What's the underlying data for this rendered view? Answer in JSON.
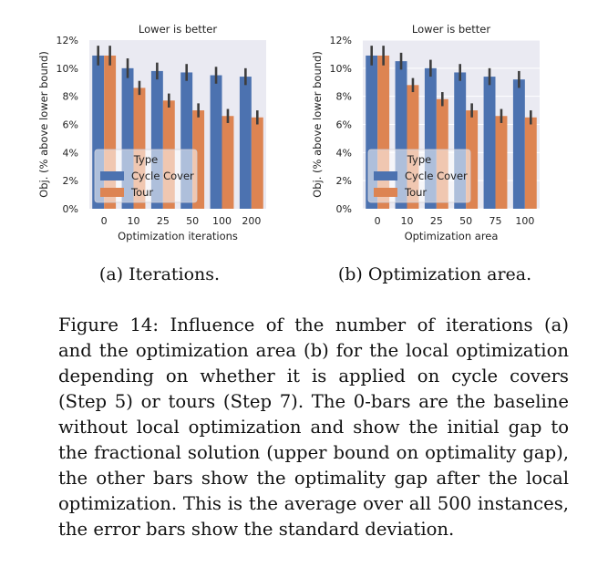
{
  "chart_data": [
    {
      "type": "bar",
      "title": "Lower is better",
      "xlabel": "Optimization iterations",
      "ylabel": "Obj. (% above lower bound)",
      "categories": [
        "0",
        "10",
        "25",
        "50",
        "100",
        "200"
      ],
      "ylim": [
        0,
        12
      ],
      "yticks": [
        "0%",
        "2%",
        "4%",
        "6%",
        "8%",
        "10%",
        "12%"
      ],
      "legend": {
        "title": "Type",
        "placement": "lower-left"
      },
      "grid": false,
      "series": [
        {
          "name": "Cycle Cover",
          "color": "#4c72b0",
          "values": [
            10.9,
            10.0,
            9.8,
            9.7,
            9.5,
            9.4
          ],
          "err": [
            0.7,
            0.7,
            0.6,
            0.6,
            0.6,
            0.6
          ]
        },
        {
          "name": "Tour",
          "color": "#dd8452",
          "values": [
            10.9,
            8.6,
            7.7,
            7.0,
            6.6,
            6.5
          ],
          "err": [
            0.7,
            0.5,
            0.5,
            0.5,
            0.5,
            0.5
          ]
        }
      ]
    },
    {
      "type": "bar",
      "title": "Lower is better",
      "xlabel": "Optimization area",
      "ylabel": "Obj. (% above lower bound)",
      "categories": [
        "0",
        "10",
        "25",
        "50",
        "75",
        "100"
      ],
      "ylim": [
        0,
        12
      ],
      "yticks": [
        "0%",
        "2%",
        "4%",
        "6%",
        "8%",
        "10%",
        "12%"
      ],
      "legend": {
        "title": "Type",
        "placement": "lower-left"
      },
      "grid": true,
      "series": [
        {
          "name": "Cycle Cover",
          "color": "#4c72b0",
          "values": [
            10.9,
            10.5,
            10.0,
            9.7,
            9.4,
            9.2
          ],
          "err": [
            0.7,
            0.6,
            0.6,
            0.6,
            0.6,
            0.6
          ]
        },
        {
          "name": "Tour",
          "color": "#dd8452",
          "values": [
            10.9,
            8.8,
            7.8,
            7.0,
            6.6,
            6.5
          ],
          "err": [
            0.7,
            0.5,
            0.5,
            0.5,
            0.5,
            0.5
          ]
        }
      ]
    }
  ],
  "captions": {
    "a": "(a) Iterations.",
    "b": "(b) Optimization area."
  },
  "figure_caption": [
    "Figure 14: Influence of the number of iterations (a)",
    "and the optimization area (b) for the local optimization",
    "depending on whether it is applied on cycle covers",
    "(Step 5) or tours (Step 7). The 0-bars are the baseline",
    "without local optimization and show the initial gap to",
    "the fractional solution (upper bound on optimality gap),",
    "the other bars show the optimality gap after the local",
    "optimization. This is the average over all 500 instances,",
    "the error bars show the standard deviation."
  ],
  "theme": {
    "plot_bg": "#eaeaf2",
    "grid": "#ffffff",
    "errorbar": "#3d3d3d",
    "text": "#222222"
  }
}
